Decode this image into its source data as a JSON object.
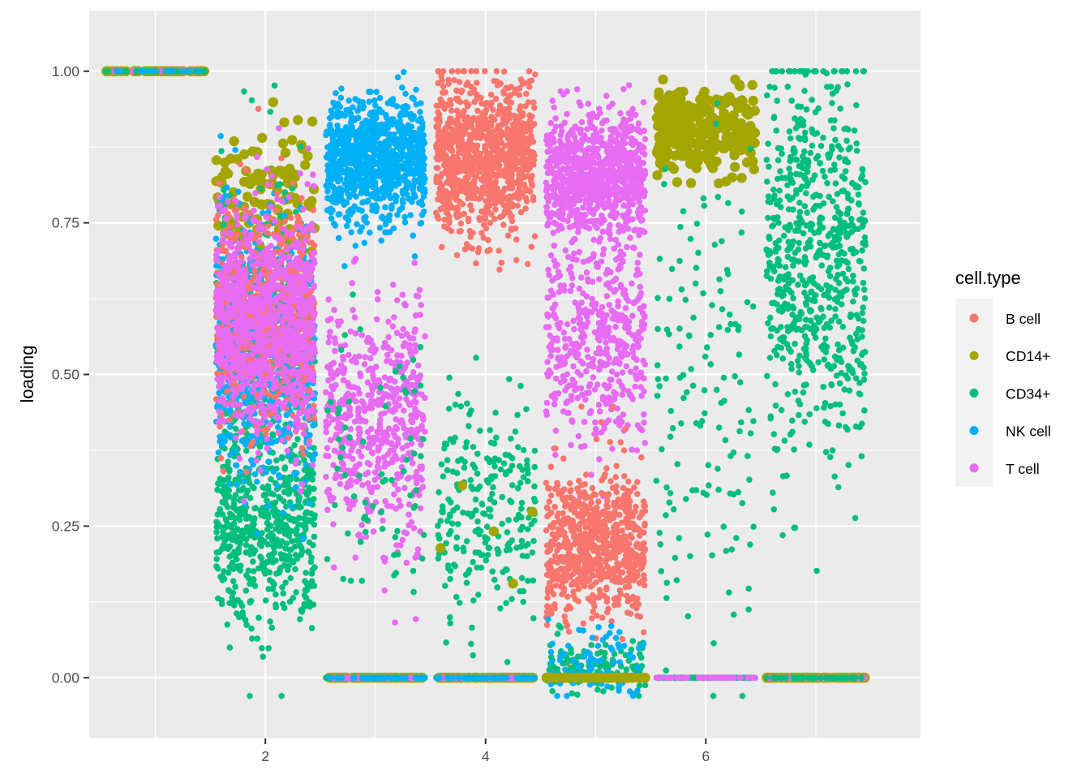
{
  "chart_data": {
    "type": "scatter",
    "title": "",
    "xlabel": "",
    "ylabel": "loading",
    "xlim": [
      0.4,
      7.95
    ],
    "ylim": [
      -0.1,
      1.1
    ],
    "x_ticks": [
      2,
      4,
      6
    ],
    "y_ticks": [
      0.0,
      0.25,
      0.5,
      0.75,
      1.0
    ],
    "x_tick_labels": [
      "2",
      "4",
      "6"
    ],
    "y_tick_labels": [
      "0.00",
      "0.25",
      "0.50",
      "0.75",
      "1.00"
    ],
    "grid": true,
    "jitter_width": 0.45,
    "legend": {
      "title": "cell.type",
      "position": "right",
      "entries": [
        "B cell",
        "CD14+",
        "CD34+",
        "NK cell",
        "T cell"
      ]
    },
    "series": [
      {
        "name": "B cell",
        "color": "#F8766D"
      },
      {
        "name": "CD14+",
        "color": "#A3A500"
      },
      {
        "name": "CD34+",
        "color": "#00BF7D"
      },
      {
        "name": "NK cell",
        "color": "#00B0F6"
      },
      {
        "name": "T cell",
        "color": "#E76BF3"
      }
    ],
    "distribution": [
      {
        "x": 1,
        "groups": [
          {
            "series": "CD14+",
            "n": 60,
            "mean": 1.0,
            "sd": 0.0,
            "size": "large"
          },
          {
            "series": "B cell",
            "n": 25,
            "mean": 1.0,
            "sd": 0.0
          },
          {
            "series": "T cell",
            "n": 25,
            "mean": 1.0,
            "sd": 0.0
          },
          {
            "series": "CD34+",
            "n": 25,
            "mean": 1.0,
            "sd": 0.0
          },
          {
            "series": "NK cell",
            "n": 15,
            "mean": 1.0,
            "sd": 0.0
          }
        ]
      },
      {
        "x": 2,
        "groups": [
          {
            "series": "CD14+",
            "n": 110,
            "mean": 0.8,
            "sd": 0.05,
            "size": "large"
          },
          {
            "series": "CD34+",
            "n": 500,
            "mean": 0.25,
            "sd": 0.08
          },
          {
            "series": "CD34+",
            "n": 300,
            "mean": 0.5,
            "sd": 0.15
          },
          {
            "series": "NK cell",
            "n": 900,
            "mean": 0.55,
            "sd": 0.1
          },
          {
            "series": "B cell",
            "n": 700,
            "mean": 0.6,
            "sd": 0.09
          },
          {
            "series": "T cell",
            "n": 900,
            "mean": 0.58,
            "sd": 0.09
          }
        ]
      },
      {
        "x": 3,
        "groups": [
          {
            "series": "NK cell",
            "n": 900,
            "mean": 0.85,
            "sd": 0.05
          },
          {
            "series": "T cell",
            "n": 550,
            "mean": 0.42,
            "sd": 0.1
          },
          {
            "series": "CD34+",
            "n": 70,
            "mean": 0.35,
            "sd": 0.12
          },
          {
            "series": "CD14+",
            "n": 80,
            "mean": 0.0,
            "sd": 0.0,
            "size": "large"
          },
          {
            "series": "CD34+",
            "n": 90,
            "mean": 0.0,
            "sd": 0.0
          },
          {
            "series": "T cell",
            "n": 60,
            "mean": 0.0,
            "sd": 0.0
          },
          {
            "series": "NK cell",
            "n": 40,
            "mean": 0.0,
            "sd": 0.0
          }
        ]
      },
      {
        "x": 4,
        "groups": [
          {
            "series": "B cell",
            "n": 950,
            "mean": 0.86,
            "sd": 0.06
          },
          {
            "series": "CD34+",
            "n": 240,
            "mean": 0.28,
            "sd": 0.09
          },
          {
            "series": "CD14+",
            "n": 5,
            "mean": 0.23,
            "sd": 0.05,
            "size": "large"
          },
          {
            "series": "CD14+",
            "n": 80,
            "mean": 0.0,
            "sd": 0.0,
            "size": "large"
          },
          {
            "series": "CD34+",
            "n": 90,
            "mean": 0.0,
            "sd": 0.0
          },
          {
            "series": "T cell",
            "n": 60,
            "mean": 0.0,
            "sd": 0.0
          },
          {
            "series": "NK cell",
            "n": 40,
            "mean": 0.0,
            "sd": 0.0
          }
        ]
      },
      {
        "x": 5,
        "groups": [
          {
            "series": "T cell",
            "n": 900,
            "mean": 0.83,
            "sd": 0.05
          },
          {
            "series": "T cell",
            "n": 450,
            "mean": 0.55,
            "sd": 0.09
          },
          {
            "series": "B cell",
            "n": 750,
            "mean": 0.22,
            "sd": 0.06
          },
          {
            "series": "CD34+",
            "n": 120,
            "mean": 0.02,
            "sd": 0.02
          },
          {
            "series": "NK cell",
            "n": 80,
            "mean": 0.02,
            "sd": 0.03
          },
          {
            "series": "CD14+",
            "n": 80,
            "mean": 0.0,
            "sd": 0.0,
            "size": "large"
          }
        ]
      },
      {
        "x": 6,
        "groups": [
          {
            "series": "CD14+",
            "n": 260,
            "mean": 0.9,
            "sd": 0.04,
            "size": "large"
          },
          {
            "series": "CD34+",
            "n": 140,
            "mean": 0.45,
            "sd": 0.2
          },
          {
            "series": "NK cell",
            "n": 110,
            "mean": 0.0,
            "sd": 0.0
          },
          {
            "series": "CD34+",
            "n": 60,
            "mean": 0.0,
            "sd": 0.0
          },
          {
            "series": "T cell",
            "n": 40,
            "mean": 0.0,
            "sd": 0.0
          }
        ]
      },
      {
        "x": 7,
        "groups": [
          {
            "series": "CD34+",
            "n": 700,
            "mean": 0.7,
            "sd": 0.16
          },
          {
            "series": "CD14+",
            "n": 90,
            "mean": 0.0,
            "sd": 0.0,
            "size": "large"
          },
          {
            "series": "T cell",
            "n": 110,
            "mean": 0.0,
            "sd": 0.0
          },
          {
            "series": "CD34+",
            "n": 40,
            "mean": 0.0,
            "sd": 0.0
          }
        ]
      }
    ]
  }
}
